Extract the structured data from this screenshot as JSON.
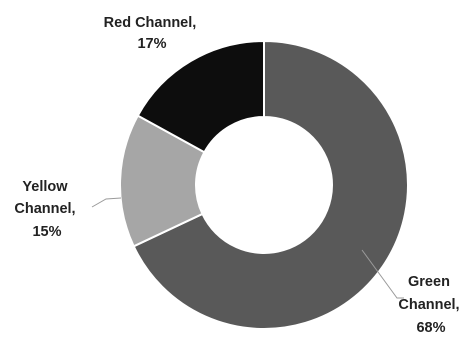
{
  "chart_data": {
    "type": "pie",
    "variant": "donut",
    "title": "",
    "legend": "none",
    "start_angle_deg": 0,
    "direction": "clockwise",
    "slices": [
      {
        "label": "Green Channel",
        "value": 68,
        "display": "68%",
        "color": "#595959"
      },
      {
        "label": "Yellow Channel",
        "value": 15,
        "display": "15%",
        "color": "#a6a6a6"
      },
      {
        "label": "Red Channel",
        "value": 17,
        "display": "17%",
        "color": "#0d0d0d"
      }
    ]
  }
}
